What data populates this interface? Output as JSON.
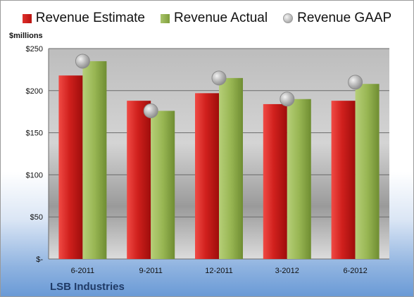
{
  "legend": {
    "estimate": "Revenue Estimate",
    "actual": "Revenue Actual",
    "gaap": "Revenue GAAP"
  },
  "unit_label": "$millions",
  "company": "LSB Industries",
  "colors": {
    "estimate": "#c8181a",
    "actual": "#95b450",
    "gaap": "#b5b5b5"
  },
  "chart_data": {
    "type": "bar",
    "title": "",
    "xlabel": "",
    "ylabel": "$millions",
    "categories": [
      "6-2011",
      "9-2011",
      "12-2011",
      "3-2012",
      "6-2012"
    ],
    "series": [
      {
        "name": "Revenue Estimate",
        "values": [
          218,
          188,
          197,
          184,
          188
        ]
      },
      {
        "name": "Revenue Actual",
        "values": [
          235,
          176,
          215,
          190,
          208
        ]
      },
      {
        "name": "Revenue GAAP",
        "values": [
          235,
          176,
          215,
          190,
          210
        ],
        "style": "marker"
      }
    ],
    "ylim": [
      0,
      250
    ],
    "yticks": [
      0,
      50,
      100,
      150,
      200,
      250
    ],
    "ytick_labels": [
      "$-",
      "$50",
      "$100",
      "$150",
      "$200",
      "$250"
    ],
    "grid": true,
    "legend": "top"
  }
}
